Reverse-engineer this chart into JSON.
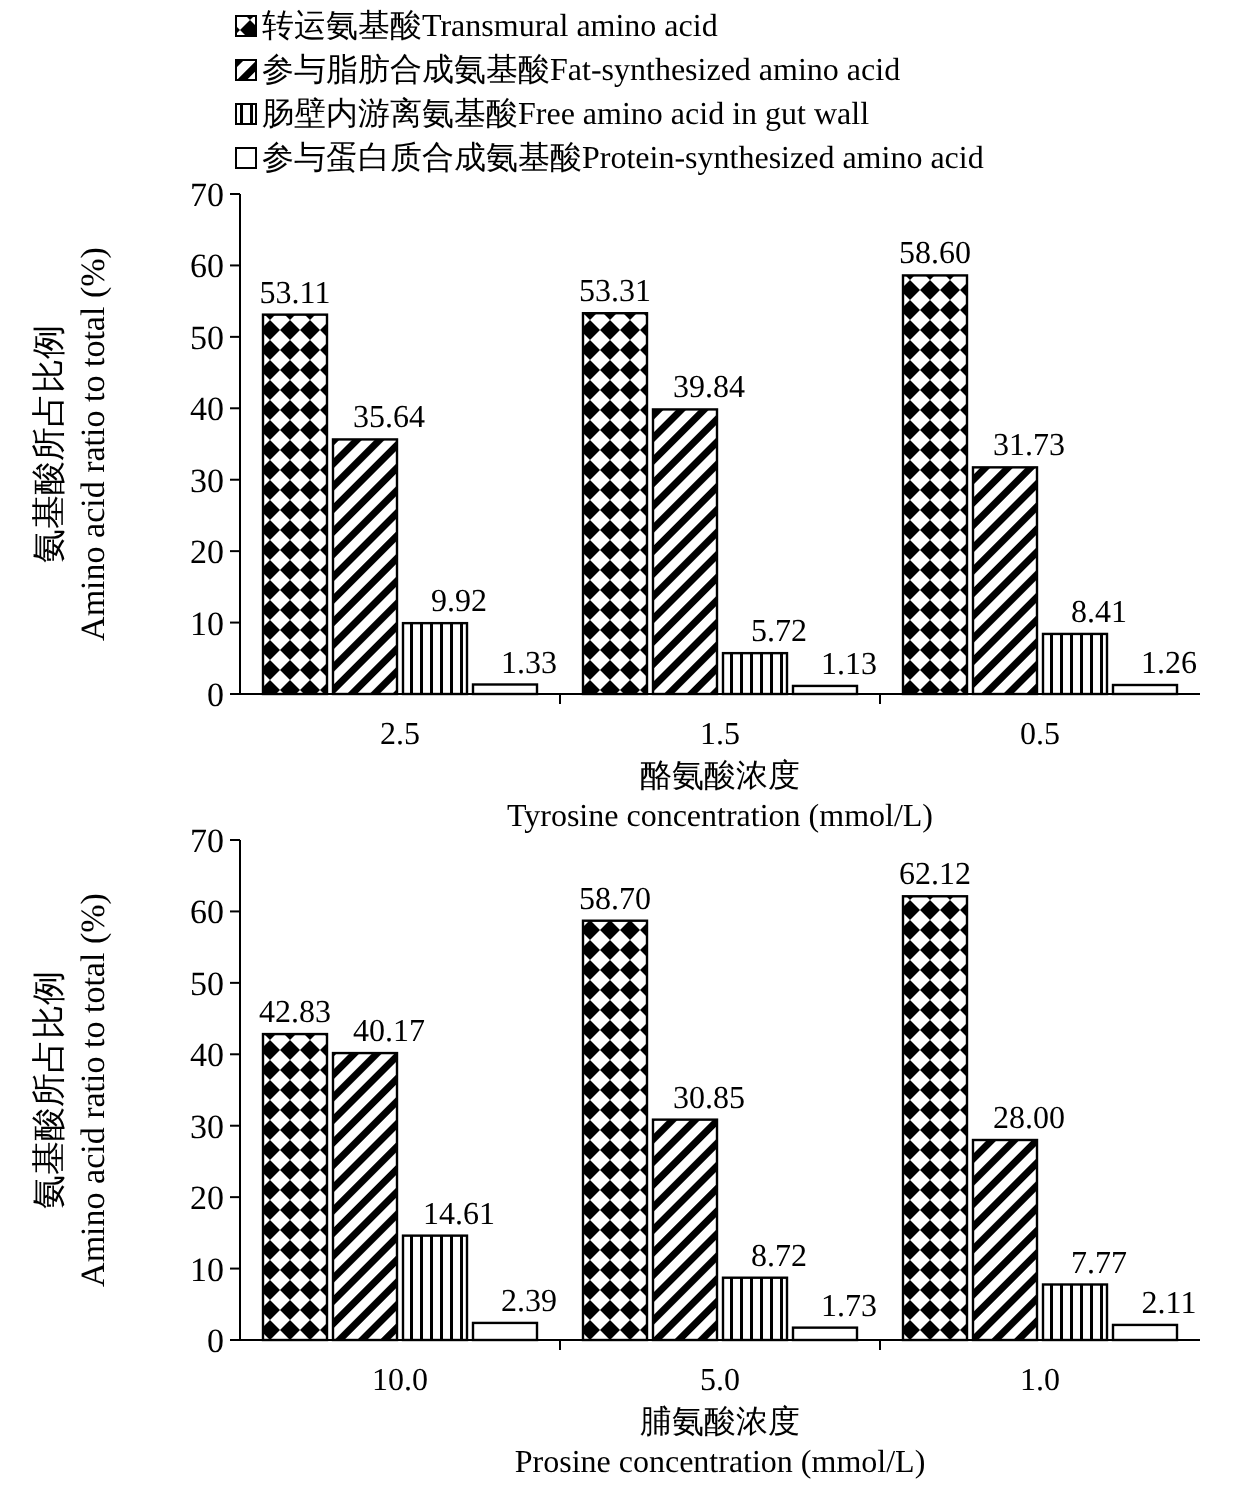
{
  "chart_data": [
    {
      "type": "bar",
      "xlabel": "酪氨酸浓度\nTyrosine concentration (mmol/L)",
      "ylabel": "氨基酸所占比例\nAmino acid ratio to total (%)",
      "categories": [
        "2.5",
        "1.5",
        "0.5"
      ],
      "ylim": [
        0,
        70
      ],
      "yticks": [
        0,
        10,
        20,
        30,
        40,
        50,
        60,
        70
      ],
      "legend": "top left",
      "grid": false,
      "series": [
        {
          "name": "转运氨基酸Transmural amino acid",
          "color": "#000000",
          "values": [
            53.11,
            53.31,
            58.6
          ],
          "value_labels": [
            "53.11",
            "53.31",
            "58.60"
          ]
        },
        {
          "name": "参与脂肪合成氨基酸Fat-synthesized amino acid",
          "color": "#000000",
          "values": [
            35.64,
            39.84,
            31.73
          ],
          "value_labels": [
            "35.64",
            "39.84",
            "31.73"
          ]
        },
        {
          "name": "肠壁内游离氨基酸Free amino acid in gut wall",
          "color": "#000000",
          "values": [
            9.92,
            5.72,
            8.41
          ],
          "value_labels": [
            "9.92",
            "5.72",
            "8.41"
          ]
        },
        {
          "name": "参与蛋白质合成氨基酸Protein-synthesized amino acid",
          "color": "#000000",
          "values": [
            1.33,
            1.13,
            1.26
          ],
          "value_labels": [
            "1.33",
            "1.13",
            "1.26"
          ]
        }
      ]
    },
    {
      "type": "bar",
      "xlabel": "脯氨酸浓度\nProsine concentration (mmol/L)",
      "ylabel": "氨基酸所占比例\nAmino acid ratio to total (%)",
      "categories": [
        "10.0",
        "5.0",
        "1.0"
      ],
      "ylim": [
        0,
        70
      ],
      "yticks": [
        0,
        10,
        20,
        30,
        40,
        50,
        60,
        70
      ],
      "grid": false,
      "series": [
        {
          "color": "#000000",
          "values": [
            42.83,
            58.7,
            62.12
          ],
          "value_labels": [
            "42.83",
            "58.70",
            "62.12"
          ]
        },
        {
          "color": "#000000",
          "values": [
            40.17,
            30.85,
            28.0
          ],
          "value_labels": [
            "40.17",
            "30.85",
            "28.00"
          ]
        },
        {
          "color": "#000000",
          "values": [
            14.61,
            8.72,
            7.77
          ],
          "value_labels": [
            "14.61",
            "8.72",
            "7.77"
          ]
        },
        {
          "color": "#000000",
          "values": [
            2.39,
            1.73,
            2.11
          ],
          "value_labels": [
            "2.39",
            "1.73",
            "2.11"
          ]
        }
      ]
    }
  ]
}
